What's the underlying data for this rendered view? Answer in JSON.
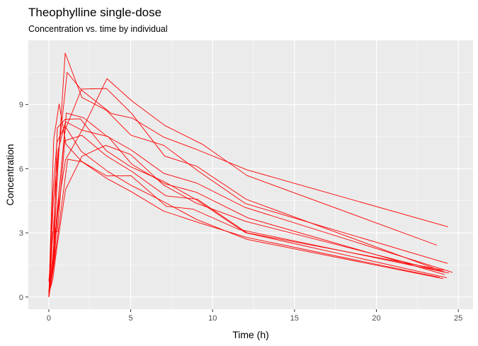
{
  "colors": {
    "panel_background": "#EBEBEB",
    "grid_major": "#FFFFFF",
    "series_line": "#FF0000",
    "tick_text": "#4D4D4D",
    "tick_mark": "#333333"
  },
  "chart_data": {
    "type": "line",
    "title": "Theophylline single-dose",
    "subtitle": "Concentration vs. time by individual",
    "xlabel": "Time (h)",
    "ylabel": "Concentration",
    "xlim": [
      -1.25,
      25.9
    ],
    "ylim": [
      -0.57,
      12.0
    ],
    "xticks": [
      0,
      5,
      10,
      15,
      20,
      25
    ],
    "yticks": [
      0,
      3,
      6,
      9
    ],
    "grid": true,
    "legend": "none",
    "series": [
      {
        "x": [
          0,
          0.25,
          0.57,
          1.12,
          2.02,
          3.82,
          5.1,
          7.03,
          9.05,
          12.12,
          24.37
        ],
        "y": [
          0.74,
          2.84,
          6.57,
          10.5,
          9.66,
          8.58,
          8.36,
          7.47,
          6.89,
          5.94,
          3.28
        ]
      },
      {
        "x": [
          0,
          0.27,
          0.52,
          1.0,
          1.92,
          3.5,
          5.02,
          7.03,
          9.0,
          12.0,
          24.3
        ],
        "y": [
          0,
          1.72,
          7.91,
          8.31,
          8.33,
          6.85,
          6.08,
          5.4,
          4.55,
          3.01,
          0.9
        ]
      },
      {
        "x": [
          0,
          0.27,
          0.58,
          1.02,
          2.02,
          3.62,
          5.08,
          7.07,
          9.0,
          12.15,
          24.17
        ],
        "y": [
          0,
          4.4,
          6.9,
          8.2,
          7.8,
          7.5,
          6.2,
          5.3,
          4.9,
          3.7,
          1.05
        ]
      },
      {
        "x": [
          0,
          0.35,
          0.6,
          1.07,
          2.13,
          3.5,
          5.02,
          7.02,
          9.02,
          11.98,
          24.65
        ],
        "y": [
          0,
          1.89,
          4.6,
          8.6,
          8.38,
          7.54,
          6.88,
          5.78,
          5.33,
          4.19,
          1.15
        ]
      },
      {
        "x": [
          0,
          0.3,
          0.52,
          1.0,
          2.02,
          3.5,
          5.02,
          7.02,
          9.1,
          12.0,
          24.35
        ],
        "y": [
          0,
          2.02,
          5.63,
          11.4,
          9.33,
          8.74,
          7.56,
          7.09,
          5.9,
          4.37,
          1.57
        ]
      },
      {
        "x": [
          0,
          0.27,
          0.58,
          1.15,
          2.03,
          3.57,
          5.0,
          7.0,
          9.22,
          12.1,
          23.85
        ],
        "y": [
          0,
          1.29,
          3.08,
          6.44,
          6.32,
          5.53,
          4.94,
          4.02,
          3.46,
          2.78,
          0.92
        ]
      },
      {
        "x": [
          0,
          0.25,
          0.5,
          1.02,
          2.02,
          3.48,
          5.0,
          6.98,
          9.0,
          12.05,
          24.22
        ],
        "y": [
          0.15,
          0.85,
          2.35,
          5.02,
          6.58,
          7.09,
          6.66,
          5.25,
          4.39,
          3.53,
          1.15
        ]
      },
      {
        "x": [
          0,
          0.25,
          0.52,
          0.98,
          2.02,
          3.53,
          5.05,
          7.15,
          9.07,
          12.1,
          24.12
        ],
        "y": [
          0,
          3.05,
          3.05,
          7.31,
          7.56,
          6.59,
          5.88,
          4.73,
          4.57,
          3.0,
          1.25
        ]
      },
      {
        "x": [
          0,
          0.3,
          0.63,
          1.05,
          2.02,
          3.53,
          5.02,
          7.17,
          8.8,
          11.6,
          24.43
        ],
        "y": [
          0,
          7.37,
          9.03,
          7.14,
          6.33,
          5.66,
          5.67,
          4.24,
          4.11,
          3.16,
          1.12
        ]
      },
      {
        "x": [
          0,
          0.37,
          0.77,
          1.02,
          2.05,
          3.55,
          5.05,
          7.08,
          9.38,
          12.1,
          23.7
        ],
        "y": [
          0.24,
          2.89,
          5.22,
          6.41,
          7.83,
          10.21,
          9.18,
          8.02,
          7.14,
          5.68,
          2.42
        ]
      },
      {
        "x": [
          0,
          0.25,
          0.5,
          0.98,
          1.98,
          3.6,
          5.02,
          7.03,
          9.03,
          12.12,
          24.08
        ],
        "y": [
          0,
          4.86,
          7.24,
          8.0,
          6.81,
          5.87,
          5.22,
          4.45,
          3.62,
          2.69,
          0.86
        ]
      },
      {
        "x": [
          0,
          0.25,
          0.5,
          1.0,
          2.0,
          3.52,
          5.07,
          7.07,
          9.03,
          12.05,
          24.15
        ],
        "y": [
          0,
          1.25,
          3.96,
          7.82,
          9.72,
          9.75,
          8.57,
          6.59,
          6.11,
          4.57,
          1.17
        ]
      }
    ]
  }
}
